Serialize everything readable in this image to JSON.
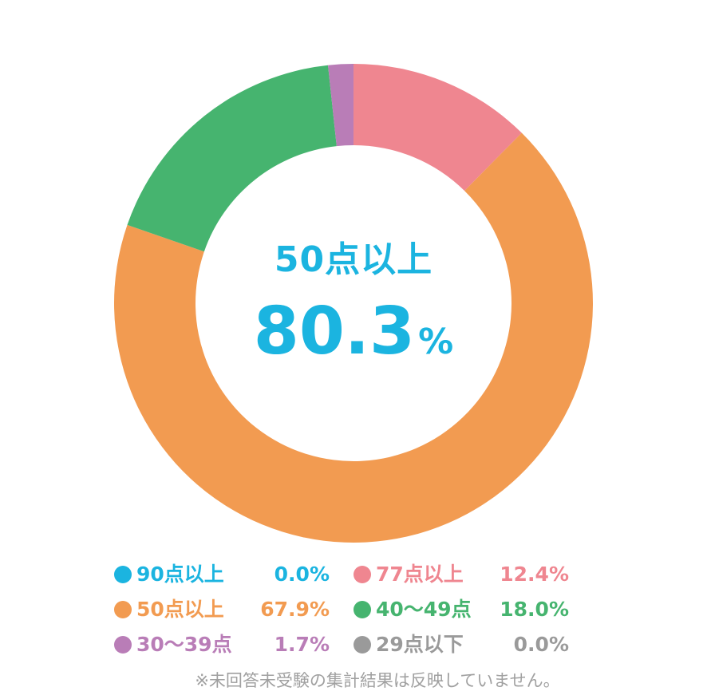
{
  "chart_data": {
    "type": "pie",
    "title": "",
    "center": {
      "title": "50点以上",
      "value": "80.3",
      "unit": "%"
    },
    "series": [
      {
        "name": "90点以上",
        "value": 0.0,
        "label": "0.0%",
        "color": "#1bb4e0"
      },
      {
        "name": "77点以上",
        "value": 12.4,
        "label": "12.4%",
        "color": "#ef8690"
      },
      {
        "name": "50点以上",
        "value": 67.9,
        "label": "67.9%",
        "color": "#f29b51"
      },
      {
        "name": "40～49点",
        "value": 18.0,
        "label": "18.0%",
        "color": "#46b46f"
      },
      {
        "name": "30～39点",
        "value": 1.7,
        "label": "1.7%",
        "color": "#b97db7"
      },
      {
        "name": "29点以下",
        "value": 0.0,
        "label": "0.0%",
        "color": "#9a9a9a"
      }
    ],
    "legend_placement": "bottom",
    "note": "※未回答未受験の集計結果は反映していません。",
    "center_color": "#1bb4e0"
  }
}
